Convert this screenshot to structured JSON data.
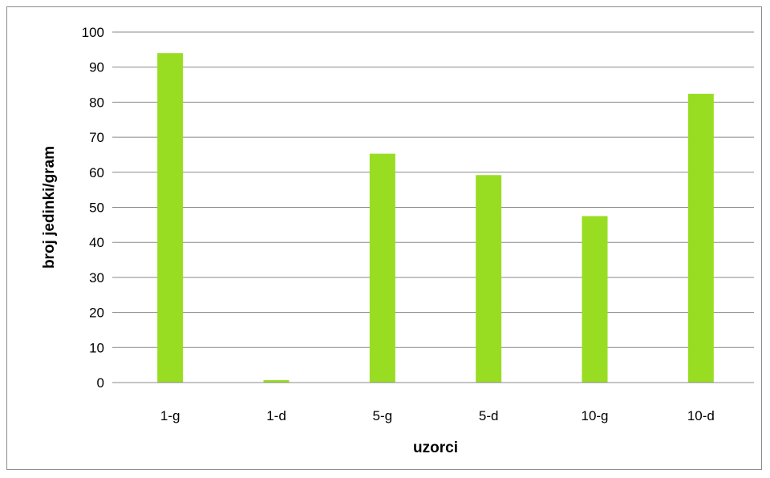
{
  "chart_data": {
    "type": "bar",
    "title": "",
    "xlabel": "uzorci",
    "ylabel": "broj jedinki/gram",
    "categories": [
      "1-g",
      "1-d",
      "5-g",
      "5-d",
      "10-g",
      "10-d"
    ],
    "values": [
      94,
      0.7,
      65.3,
      59.2,
      47.5,
      82.4
    ],
    "ylim": [
      0,
      100
    ],
    "yticks": [
      "0",
      "10",
      "20",
      "30",
      "40",
      "50",
      "60",
      "70",
      "80",
      "90",
      "100"
    ],
    "grid": true,
    "legend": "none",
    "bar_color": "#99dd22",
    "gridline_color": "#888888"
  }
}
